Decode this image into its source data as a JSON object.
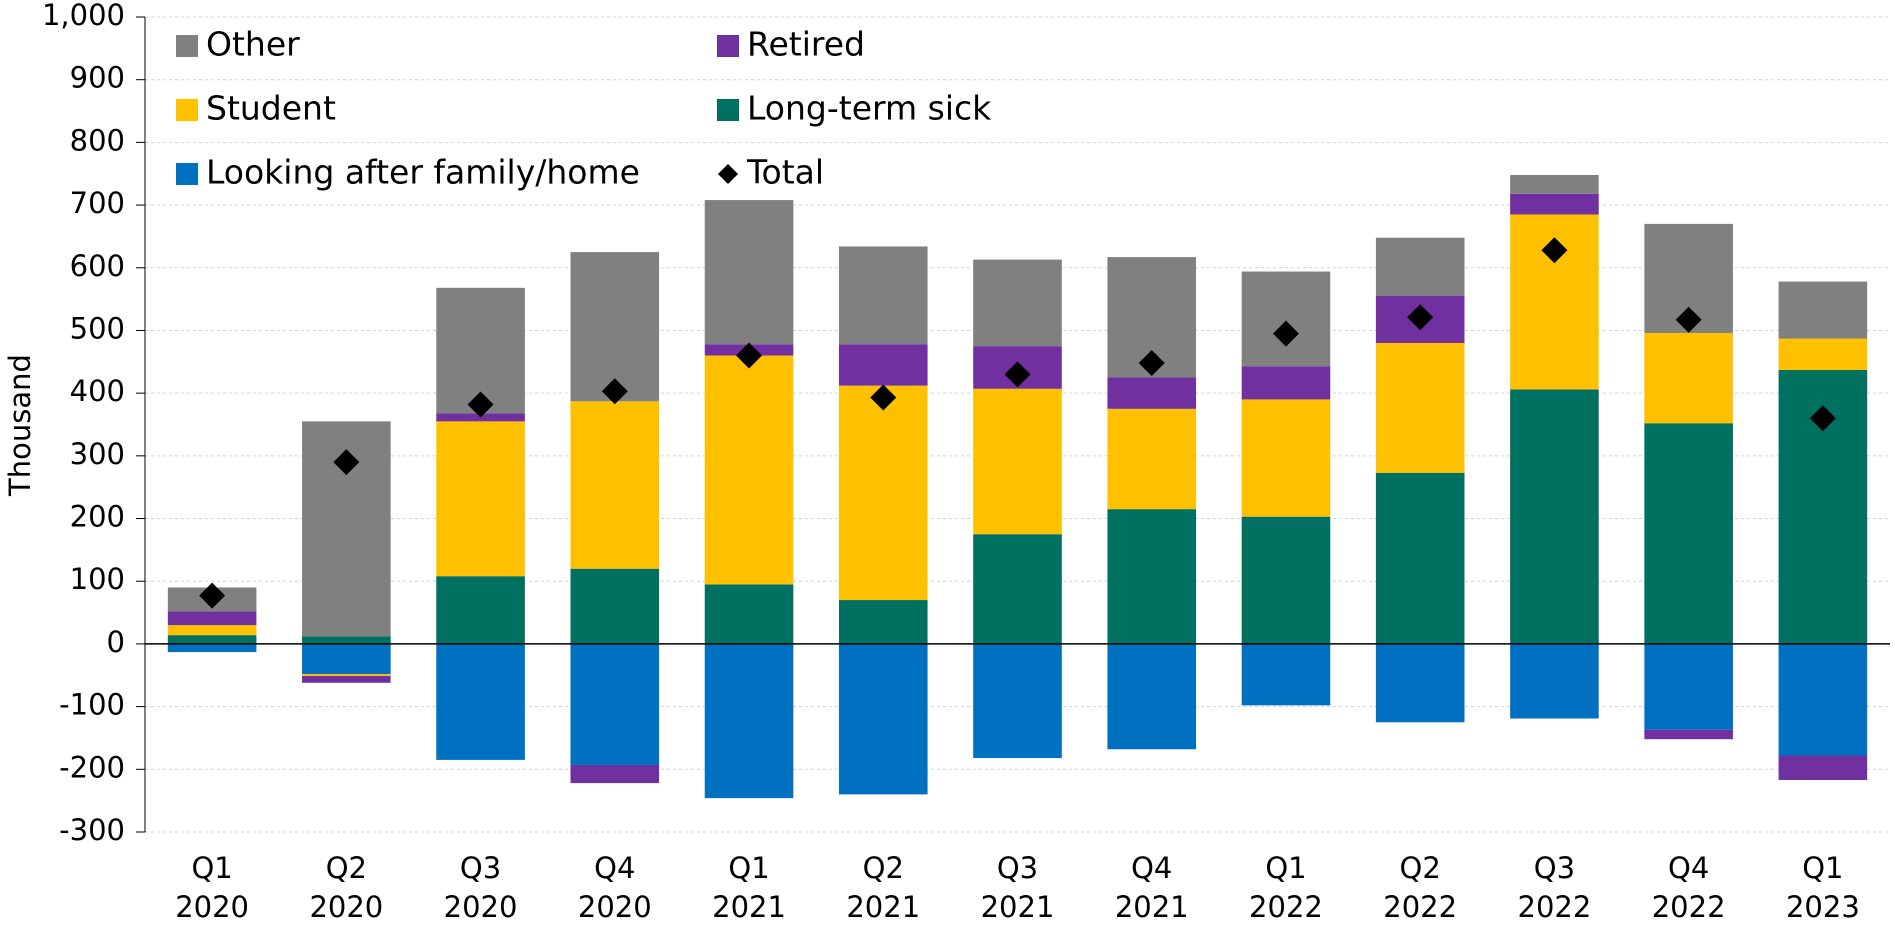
{
  "chart_data": {
    "type": "bar",
    "stacked": true,
    "y_label": "Thousand",
    "categories": [
      [
        "Q1",
        "2020"
      ],
      [
        "Q2",
        "2020"
      ],
      [
        "Q3",
        "2020"
      ],
      [
        "Q4",
        "2020"
      ],
      [
        "Q1",
        "2021"
      ],
      [
        "Q2",
        "2021"
      ],
      [
        "Q3",
        "2021"
      ],
      [
        "Q4",
        "2021"
      ],
      [
        "Q1",
        "2022"
      ],
      [
        "Q2",
        "2022"
      ],
      [
        "Q3",
        "2022"
      ],
      [
        "Q4",
        "2022"
      ],
      [
        "Q1",
        "2023"
      ]
    ],
    "series": [
      {
        "name": "Looking after family/home",
        "color": "#0070c0",
        "values": [
          -13,
          -48,
          -185,
          -193,
          -246,
          -240,
          -182,
          -168,
          -98,
          -125,
          -119,
          -137,
          -178
        ]
      },
      {
        "name": "Long-term sick",
        "color": "#007060",
        "values": [
          14,
          12,
          108,
          120,
          95,
          70,
          175,
          215,
          203,
          273,
          406,
          352,
          437
        ]
      },
      {
        "name": "Student",
        "color": "#ffc000",
        "values": [
          16,
          -3,
          247,
          267,
          365,
          342,
          232,
          160,
          187,
          207,
          279,
          144,
          50
        ]
      },
      {
        "name": "Retired",
        "color": "#7030a0",
        "values": [
          22,
          -11,
          13,
          -29,
          18,
          66,
          68,
          50,
          53,
          75,
          33,
          -15,
          -39
        ]
      },
      {
        "name": "Other",
        "color": "#808080",
        "values": [
          38,
          343,
          200,
          238,
          230,
          156,
          138,
          192,
          151,
          93,
          30,
          174,
          91
        ]
      }
    ],
    "total": {
      "name": "Total",
      "color": "#000000",
      "values": [
        77,
        290,
        382,
        403,
        460,
        393,
        430,
        448,
        495,
        521,
        628,
        517,
        360
      ]
    },
    "ylim": [
      -300,
      1000
    ],
    "yticks": [
      -300,
      -200,
      -100,
      0,
      100,
      200,
      300,
      400,
      500,
      600,
      700,
      800,
      900,
      {
        "value": 1000,
        "label": "1,000"
      }
    ],
    "grid": true
  }
}
